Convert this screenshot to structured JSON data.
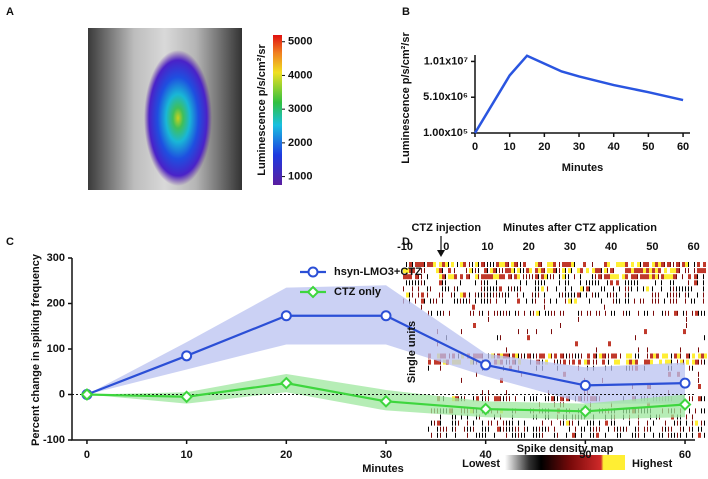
{
  "chart_data": [
    {
      "panel": "A",
      "type": "image",
      "colorbar_label": "Luminescence p/s/cm²/sr",
      "zlim": [
        750,
        5200
      ],
      "zticks": [
        1000,
        2000,
        3000,
        4000,
        5000
      ]
    },
    {
      "panel": "B",
      "type": "line",
      "x": [
        0,
        10,
        15,
        20,
        25,
        30,
        40,
        50,
        60
      ],
      "series": [
        {
          "color": "#2a55e0",
          "values": [
            100000,
            8150000,
            10900000,
            9800000,
            8700000,
            8000000,
            6800000,
            5800000,
            4700000
          ]
        }
      ],
      "xlabel": "Minutes",
      "ylabel": "Luminescence  p/s/cm²/sr",
      "xlim": [
        0,
        62
      ],
      "xticks": [
        0,
        10,
        20,
        30,
        40,
        50,
        60
      ],
      "ylim": [
        100000,
        11000000
      ],
      "yticks": [
        {
          "value": 100000,
          "label": "1.00x10⁵"
        },
        {
          "value": 5100000,
          "label": "5.10x10⁶"
        },
        {
          "value": 10100000,
          "label": "1.01x10⁷"
        }
      ]
    },
    {
      "panel": "C",
      "type": "line_band",
      "x": [
        0,
        10,
        20,
        30,
        40,
        50,
        60
      ],
      "series": [
        {
          "name": "hsyn-LMO3+CTZ",
          "color": "#2b4fd6",
          "band_color": "#b9c2f0",
          "marker": "circle",
          "values": [
            0,
            85,
            173,
            173,
            65,
            20,
            25
          ],
          "upper": [
            0,
            115,
            235,
            240,
            90,
            60,
            70
          ],
          "lower": [
            0,
            55,
            110,
            110,
            40,
            -20,
            -20
          ]
        },
        {
          "name": "CTZ only",
          "color": "#3ed63e",
          "band_color": "#9ee79e",
          "marker": "diamond",
          "values": [
            0,
            -5,
            25,
            -15,
            -32,
            -37,
            -22
          ],
          "upper": [
            0,
            5,
            45,
            10,
            -15,
            -20,
            0
          ],
          "lower": [
            0,
            -20,
            5,
            -35,
            -50,
            -55,
            -50
          ]
        }
      ],
      "xlabel": "Minutes",
      "ylabel": "Percent change in spiking frequency",
      "xlim": [
        -1.5,
        61
      ],
      "xticks": [
        0,
        10,
        20,
        30,
        40,
        50,
        60
      ],
      "ylim": [
        -100,
        300
      ],
      "yticks": [
        -100,
        0,
        100,
        200,
        300
      ],
      "zero_line": true
    },
    {
      "panel": "D",
      "type": "raster",
      "title": "Minutes after CTZ application",
      "annotation": "CTZ injection",
      "annotation_x": 0,
      "ylabel": "Single units",
      "xlim": [
        -10.5,
        63
      ],
      "xticks": [
        -10,
        0,
        10,
        20,
        30,
        40,
        50,
        60
      ],
      "colorbar_title": "Spike density map",
      "colorbar_low": "Lowest",
      "colorbar_high": "Highest",
      "colors": [
        "#000000",
        "#7a0a0a",
        "#c0392b",
        "#ffee33"
      ]
    }
  ]
}
